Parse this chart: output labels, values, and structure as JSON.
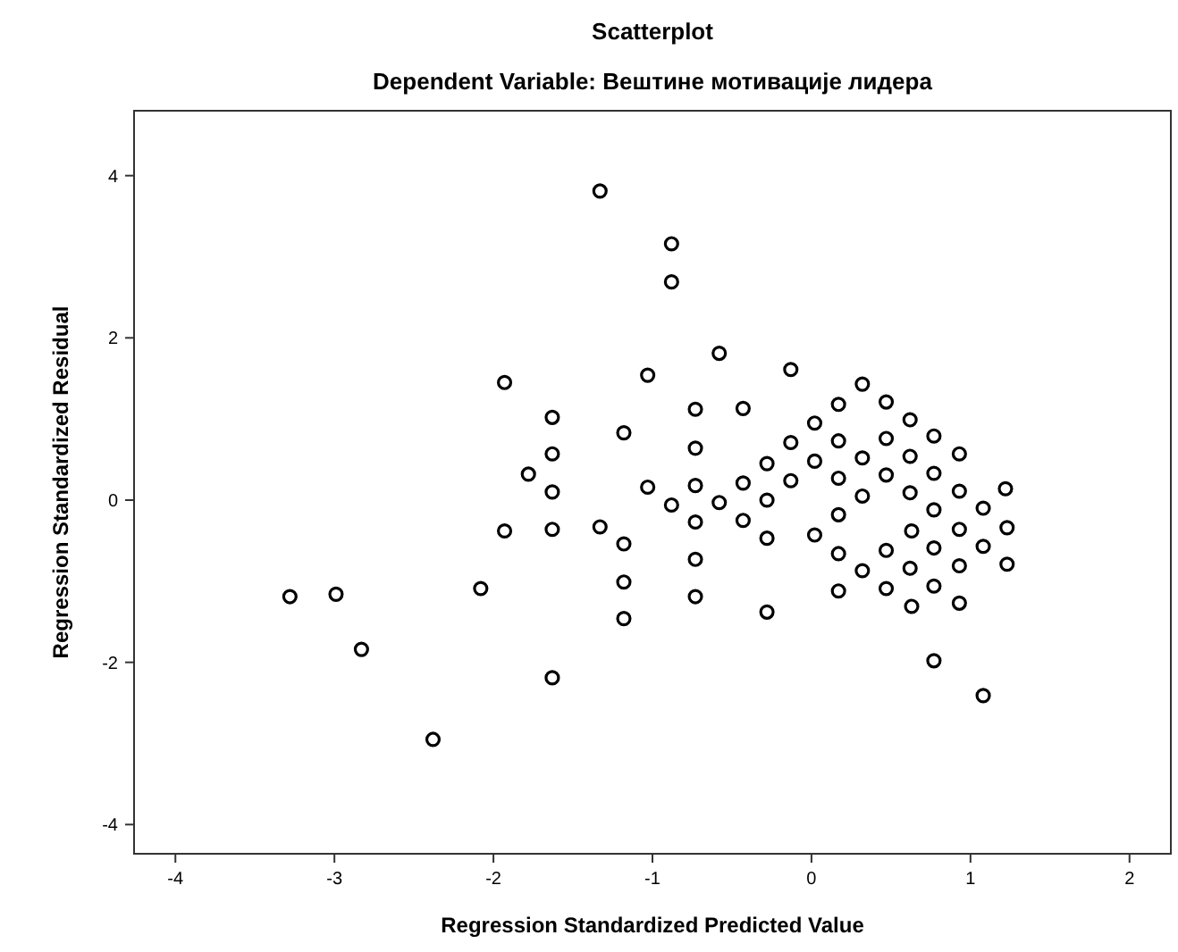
{
  "chart_data": {
    "type": "scatter",
    "title": "Scatterplot",
    "subtitle": "Dependent Variable: Вештине мотивације лидера",
    "xlabel": "Regression Standardized Predicted Value",
    "ylabel": "Regression Standardized Residual",
    "xlim": [
      -4.26,
      2.26
    ],
    "ylim": [
      -4.36,
      4.8
    ],
    "xticks": [
      -4,
      -3,
      -2,
      -1,
      0,
      1,
      2
    ],
    "yticks": [
      -4,
      -2,
      0,
      2,
      4
    ],
    "marker": "circle",
    "series": [
      {
        "color": "#000000",
        "x": [
          -1.33,
          -0.88,
          -0.88,
          -0.58,
          -1.03,
          -0.13,
          0.32,
          -0.73,
          -0.43,
          0.17,
          0.47,
          -1.18,
          0.02,
          0.62,
          -0.73,
          -0.13,
          0.17,
          0.47,
          0.77,
          -0.28,
          0.02,
          0.32,
          0.62,
          0.93,
          -1.03,
          -0.73,
          -0.43,
          -0.13,
          0.17,
          0.47,
          0.77,
          0.93,
          1.22,
          -0.88,
          -0.58,
          -0.28,
          0.62,
          0.32,
          1.08,
          0.77,
          0.17,
          -1.93,
          -1.63,
          -1.63,
          -1.78,
          -1.63,
          -1.93,
          -1.63,
          -1.33,
          -1.18,
          -1.18,
          -1.18,
          -3.28,
          -2.99,
          -2.08,
          -2.83,
          -1.63,
          -2.38,
          -0.73,
          -0.43,
          -0.28,
          0.02,
          0.63,
          0.93,
          1.23,
          -0.73,
          0.17,
          0.47,
          0.77,
          1.08,
          0.32,
          0.62,
          0.93,
          1.23,
          -0.73,
          -0.28,
          0.17,
          0.47,
          0.77,
          0.63,
          0.93,
          0.77,
          1.08
        ],
        "values": [
          3.81,
          3.16,
          2.69,
          1.81,
          1.54,
          1.61,
          1.43,
          1.12,
          1.13,
          1.18,
          1.21,
          0.83,
          0.95,
          0.99,
          0.64,
          0.71,
          0.73,
          0.76,
          0.79,
          0.45,
          0.48,
          0.52,
          0.54,
          0.57,
          0.16,
          0.18,
          0.21,
          0.24,
          0.27,
          0.31,
          0.33,
          0.11,
          0.14,
          -0.06,
          -0.03,
          0.0,
          0.09,
          0.05,
          -0.1,
          -0.12,
          -0.18,
          1.45,
          1.02,
          0.57,
          0.32,
          0.1,
          -0.38,
          -0.36,
          -0.33,
          -0.54,
          -1.01,
          -1.46,
          -1.19,
          -1.16,
          -1.09,
          -1.84,
          -2.19,
          -2.95,
          -0.27,
          -0.25,
          -0.47,
          -0.43,
          -0.38,
          -0.36,
          -0.34,
          -0.73,
          -0.66,
          -0.62,
          -0.59,
          -0.57,
          -0.87,
          -0.84,
          -0.81,
          -0.79,
          -1.19,
          -1.38,
          -1.12,
          -1.09,
          -1.06,
          -1.31,
          -1.27,
          -1.98,
          -2.41
        ]
      }
    ]
  }
}
